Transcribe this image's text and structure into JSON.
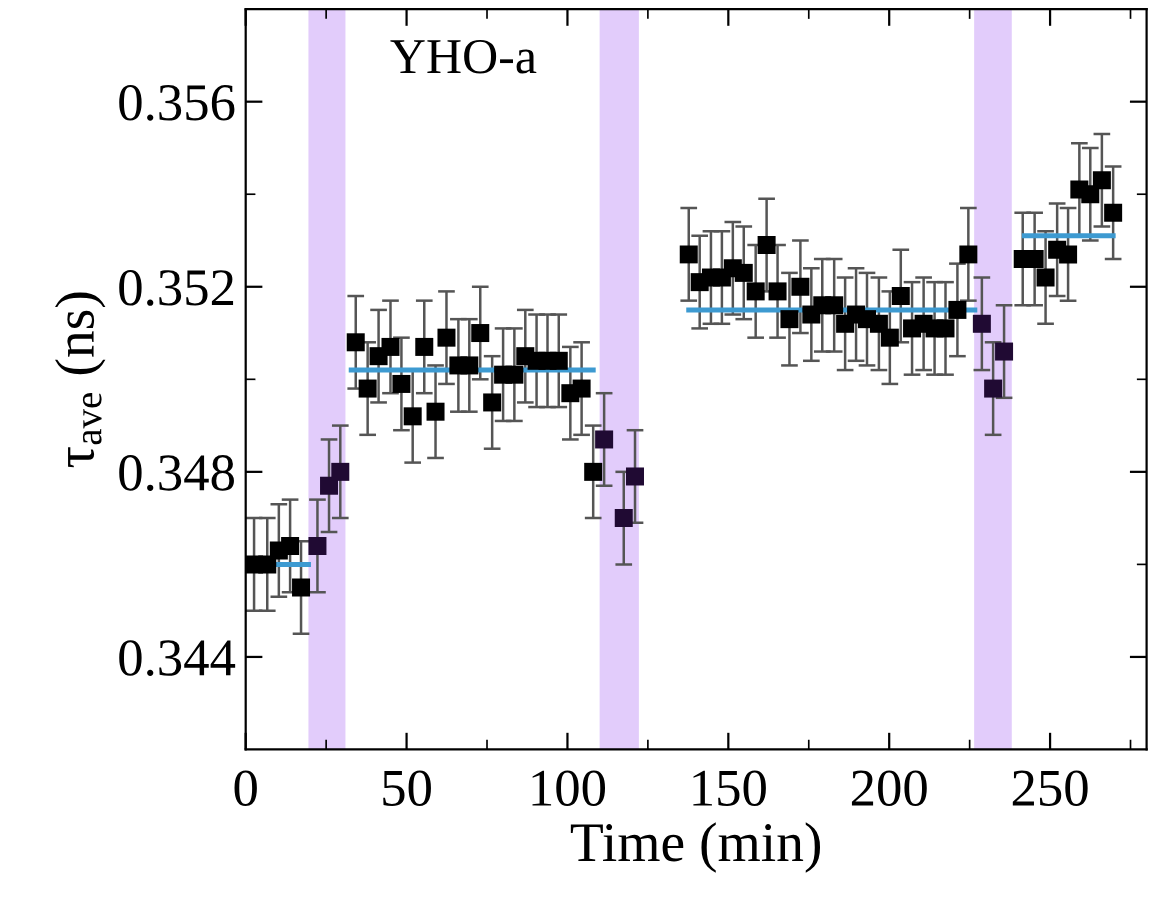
{
  "chart_data": {
    "type": "scatter",
    "xlabel": "Time (min)",
    "ylabel": "τ$_{ave}$ (ns)",
    "annotations": [
      "YHO-a"
    ],
    "xlim": [
      0,
      280
    ],
    "xticks": [
      0,
      50,
      100,
      150,
      200,
      250
    ],
    "ylim": [
      0.342,
      0.358
    ],
    "yticks": [
      0.344,
      0.348,
      0.352,
      0.356
    ],
    "grid": false,
    "legend": false,
    "marker": "square",
    "series": [
      {
        "color": "#000000",
        "x": [
          2.6,
          6.7,
          10.3,
          13.8,
          17.2,
          22.3,
          25.9,
          29.4,
          34.2,
          37.9,
          41.3,
          45.0,
          48.4,
          51.9,
          55.5,
          59.0,
          62.4,
          66.1,
          69.5,
          72.9,
          76.6,
          80.0,
          83.5,
          86.9,
          90.4,
          93.8,
          97.3,
          100.9,
          104.4,
          108.0,
          111.4,
          117.5,
          121.0,
          137.7,
          141.1,
          144.6,
          148.0,
          151.4,
          154.8,
          158.5,
          161.9,
          165.3,
          169.0,
          172.4,
          175.8,
          179.2,
          182.9,
          186.3,
          189.7,
          193.1,
          196.8,
          200.2,
          203.6,
          207.1,
          210.7,
          214.1,
          217.5,
          221.2,
          224.6,
          228.8,
          232.3,
          235.7,
          241.5,
          245.2,
          248.6,
          252.2,
          255.6,
          259.1,
          262.5,
          266.1,
          269.6
        ],
        "values": [
          0.346,
          0.346,
          0.3463,
          0.3464,
          0.3455,
          0.3464,
          0.3477,
          0.348,
          0.3508,
          0.3498,
          0.3505,
          0.3507,
          0.3499,
          0.3492,
          0.3507,
          0.3493,
          0.3509,
          0.3503,
          0.3503,
          0.351,
          0.3495,
          0.3501,
          0.3501,
          0.3505,
          0.3504,
          0.3504,
          0.3504,
          0.3497,
          0.3498,
          0.348,
          0.3487,
          0.347,
          0.3479,
          0.3527,
          0.3521,
          0.3522,
          0.3522,
          0.3524,
          0.3523,
          0.3519,
          0.3529,
          0.3519,
          0.3513,
          0.352,
          0.3514,
          0.3516,
          0.3516,
          0.3512,
          0.3514,
          0.3513,
          0.3512,
          0.3509,
          0.3518,
          0.3511,
          0.3512,
          0.3511,
          0.3511,
          0.3515,
          0.3527,
          0.3512,
          0.3498,
          0.3506,
          0.3526,
          0.3526,
          0.3522,
          0.3528,
          0.3527,
          0.3541,
          0.354,
          0.3543,
          0.3536
        ],
        "colors": [
          "#000000",
          "#000000",
          "#000000",
          "#000000",
          "#000000",
          "#200a33",
          "#200a33",
          "#200a33",
          "#000000",
          "#000000",
          "#000000",
          "#000000",
          "#000000",
          "#000000",
          "#000000",
          "#000000",
          "#000000",
          "#000000",
          "#000000",
          "#000000",
          "#000000",
          "#000000",
          "#000000",
          "#000000",
          "#000000",
          "#000000",
          "#000000",
          "#000000",
          "#000000",
          "#000000",
          "#200a33",
          "#200a33",
          "#200a33",
          "#000000",
          "#000000",
          "#000000",
          "#000000",
          "#000000",
          "#000000",
          "#000000",
          "#000000",
          "#000000",
          "#000000",
          "#000000",
          "#000000",
          "#000000",
          "#000000",
          "#000000",
          "#000000",
          "#000000",
          "#000000",
          "#000000",
          "#000000",
          "#000000",
          "#000000",
          "#000000",
          "#000000",
          "#000000",
          "#000000",
          "#200a33",
          "#200a33",
          "#200a33",
          "#000000",
          "#000000",
          "#000000",
          "#000000",
          "#000000",
          "#000000",
          "#000000",
          "#000000",
          "#000000"
        ],
        "errors": [
          0.001,
          0.001,
          0.001,
          0.001,
          0.001,
          0.001,
          0.001,
          0.001,
          0.001,
          0.001,
          0.001,
          0.001,
          0.001,
          0.001,
          0.001,
          0.001,
          0.001,
          0.001,
          0.001,
          0.001,
          0.001,
          0.001,
          0.001,
          0.001,
          0.001,
          0.001,
          0.001,
          0.001,
          0.001,
          0.001,
          0.001,
          0.001,
          0.001,
          0.001,
          0.001,
          0.001,
          0.001,
          0.001,
          0.001,
          0.001,
          0.001,
          0.001,
          0.001,
          0.001,
          0.001,
          0.001,
          0.001,
          0.001,
          0.001,
          0.001,
          0.001,
          0.001,
          0.001,
          0.001,
          0.001,
          0.001,
          0.001,
          0.001,
          0.001,
          0.001,
          0.001,
          0.001,
          0.001,
          0.001,
          0.001,
          0.001,
          0.001,
          0.001,
          0.001,
          0.001,
          0.001
        ]
      },
      {
        "type": "line",
        "color": "#3d9ad1",
        "marker": "none",
        "x": [
          0,
          19.5
        ],
        "values": [
          0.346,
          0.346
        ]
      },
      {
        "type": "line",
        "color": "#3d9ad1",
        "marker": "none",
        "x": [
          32.8,
          108
        ],
        "values": [
          0.3502,
          0.3502
        ]
      },
      {
        "type": "line",
        "color": "#3d9ad1",
        "marker": "none",
        "x": [
          137.7,
          226.6
        ],
        "values": [
          0.3515,
          0.3515
        ]
      },
      {
        "type": "line",
        "color": "#3d9ad1",
        "marker": "none",
        "x": [
          242,
          269.6
        ],
        "values": [
          0.3531,
          0.3531
        ]
      }
    ],
    "bands": [
      {
        "axis": "x",
        "from": 19.5,
        "to": 31.0,
        "color": "#e2ccfb"
      },
      {
        "axis": "x",
        "from": 110,
        "to": 122.2,
        "color": "#e2ccfb"
      },
      {
        "axis": "x",
        "from": 226.4,
        "to": 238.1,
        "color": "#e2ccfb"
      }
    ]
  }
}
